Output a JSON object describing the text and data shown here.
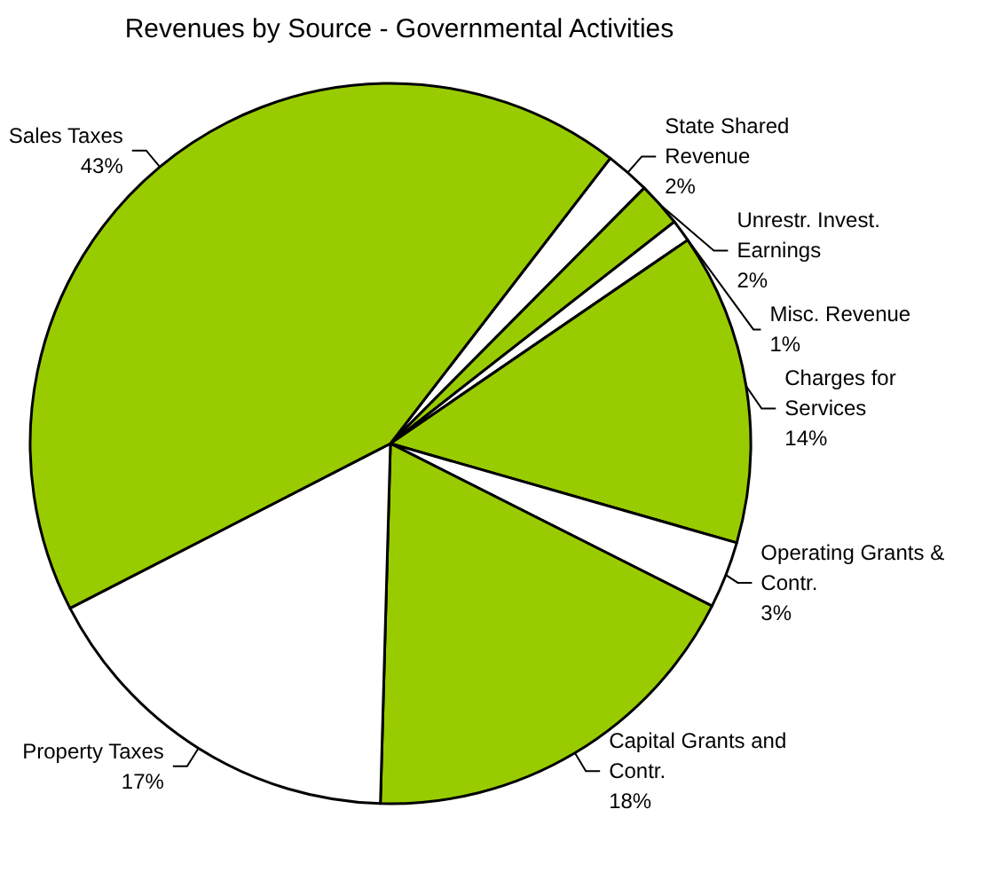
{
  "chart_data": {
    "type": "pie",
    "title": "Revenues by Source - Governmental Activities",
    "categories": [
      "State Shared Revenue",
      "Unrestr. Invest. Earnings",
      "Misc. Revenue",
      "Charges for Services",
      "Operating Grants & Contr.",
      "Capital Grants and Contr.",
      "Property Taxes",
      "Sales Taxes"
    ],
    "values": [
      2,
      2,
      1,
      14,
      3,
      18,
      17,
      43
    ],
    "value_labels": [
      "2%",
      "2%",
      "1%",
      "14%",
      "3%",
      "18%",
      "17%",
      "43%"
    ],
    "colors": [
      "#ffffff",
      "#99cc00",
      "#ffffff",
      "#99cc00",
      "#ffffff",
      "#99cc00",
      "#ffffff",
      "#99cc00"
    ],
    "legend": false
  }
}
